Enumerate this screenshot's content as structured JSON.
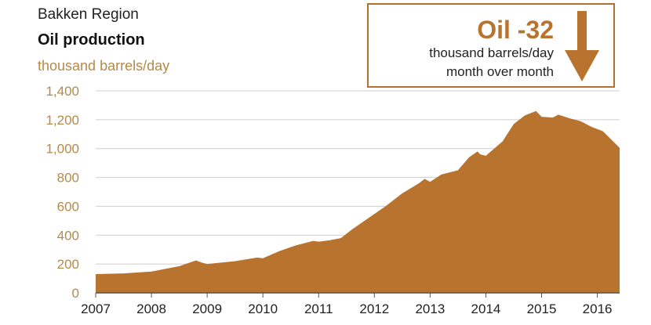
{
  "header": {
    "region": "Bakken Region",
    "title": "Oil production",
    "unit": "thousand barrels/day"
  },
  "callout": {
    "headline": "Oil -32",
    "line1": "thousand barrels/day",
    "line2": "month over month",
    "arrow_icon": "down-arrow-icon"
  },
  "colors": {
    "area_fill": "#b8732f",
    "accent_text": "#b5894a",
    "grid": "#cfcfcf"
  },
  "chart_data": {
    "type": "area",
    "title": "Oil production",
    "ylabel": "thousand barrels/day",
    "ylim": [
      0,
      1400
    ],
    "yticks": [
      0,
      200,
      400,
      600,
      800,
      1000,
      1200,
      1400
    ],
    "ytick_labels": [
      "0",
      "200",
      "400",
      "600",
      "800",
      "1,000",
      "1,200",
      "1,400"
    ],
    "xlim": [
      2007,
      2016.4
    ],
    "xticks": [
      2007,
      2008,
      2009,
      2010,
      2011,
      2012,
      2013,
      2014,
      2015,
      2016
    ],
    "grid": true,
    "series": [
      {
        "name": "Oil production",
        "x": [
          2007.0,
          2007.5,
          2008.0,
          2008.5,
          2008.8,
          2008.9,
          2009.0,
          2009.5,
          2009.9,
          2010.0,
          2010.3,
          2010.6,
          2010.9,
          2011.0,
          2011.2,
          2011.4,
          2011.6,
          2011.9,
          2012.2,
          2012.5,
          2012.8,
          2012.9,
          2013.0,
          2013.2,
          2013.5,
          2013.7,
          2013.85,
          2013.9,
          2014.0,
          2014.3,
          2014.5,
          2014.7,
          2014.9,
          2015.0,
          2015.2,
          2015.3,
          2015.5,
          2015.7,
          2015.9,
          2016.1,
          2016.4
        ],
        "values": [
          130,
          135,
          148,
          185,
          225,
          210,
          200,
          220,
          245,
          240,
          290,
          330,
          360,
          355,
          365,
          380,
          440,
          520,
          600,
          690,
          760,
          790,
          770,
          820,
          850,
          940,
          980,
          960,
          950,
          1050,
          1170,
          1230,
          1260,
          1220,
          1215,
          1235,
          1210,
          1190,
          1150,
          1120,
          1005
        ]
      }
    ]
  }
}
